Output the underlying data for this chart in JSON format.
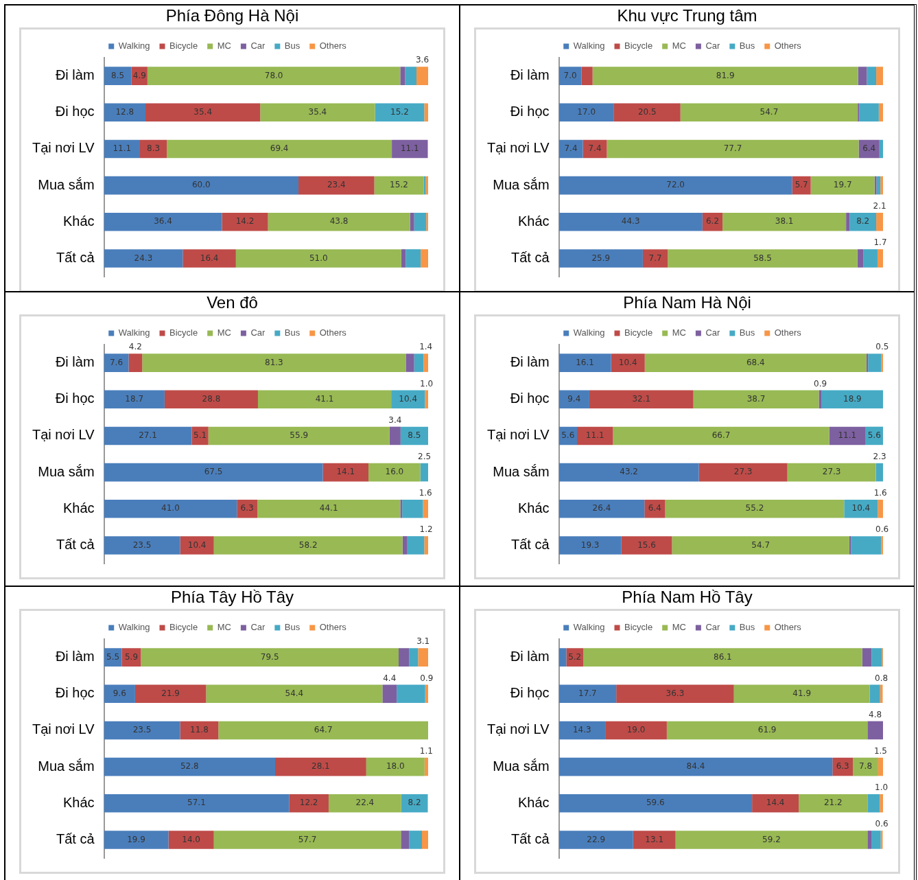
{
  "chart_data": [
    {
      "type": "bar",
      "orientation": "horizontal",
      "stacked": true,
      "title": "Phía Đông Hà Nội",
      "categories": [
        "Đi làm",
        "Đi học",
        "Tại nơi LV",
        "Mua sắm",
        "Khác",
        "Tất cả"
      ],
      "xlim": [
        0,
        100
      ],
      "tick_labels": "y",
      "legend": "top",
      "series": [
        {
          "name": "Walking",
          "color": "#4a7ebb",
          "values": [
            8.5,
            12.8,
            11.1,
            60.0,
            36.4,
            24.3
          ],
          "value_labels": [
            "8.5",
            "12.8",
            "11.1",
            "60.0",
            "36.4",
            "24.3"
          ]
        },
        {
          "name": "Bicycle",
          "color": "#be4b48",
          "values": [
            4.9,
            35.4,
            8.3,
            23.4,
            14.2,
            16.4
          ],
          "value_labels": [
            "4.9",
            "35.4",
            "8.3",
            "23.4",
            "14.2",
            "16.4"
          ]
        },
        {
          "name": "MC",
          "color": "#98b954",
          "values": [
            78.0,
            35.4,
            69.4,
            15.2,
            43.8,
            51.0
          ],
          "value_labels": [
            "78.0",
            "35.4",
            "69.4",
            "15.2",
            "43.8",
            "51.0"
          ]
        },
        {
          "name": "Car",
          "color": "#7d60a0",
          "values": [
            1.5,
            0,
            11.1,
            0,
            1.3,
            1.4
          ],
          "value_labels": [
            null,
            null,
            "11.1",
            null,
            null,
            null
          ]
        },
        {
          "name": "Bus",
          "color": "#46aac5",
          "values": [
            3.5,
            15.2,
            0,
            0.7,
            3.7,
            4.6
          ],
          "value_labels": [
            null,
            "15.2",
            null,
            null,
            null,
            null
          ]
        },
        {
          "name": "Others",
          "color": "#f79646",
          "values": [
            3.6,
            1.2,
            0,
            0.7,
            0.6,
            2.3
          ],
          "value_labels": [
            "3.6",
            null,
            null,
            null,
            null,
            null
          ]
        }
      ]
    },
    {
      "type": "bar",
      "orientation": "horizontal",
      "stacked": true,
      "title": "Khu vực Trung tâm",
      "categories": [
        "Đi làm",
        "Đi học",
        "Tại nơi LV",
        "Mua sắm",
        "Khác",
        "Tất cả"
      ],
      "xlim": [
        0,
        100
      ],
      "tick_labels": "y",
      "legend": "top",
      "series": [
        {
          "name": "Walking",
          "color": "#4a7ebb",
          "values": [
            7.0,
            17.0,
            7.4,
            72.0,
            44.3,
            25.9
          ],
          "value_labels": [
            "7.0",
            "17.0",
            "7.4",
            "72.0",
            "44.3",
            "25.9"
          ]
        },
        {
          "name": "Bicycle",
          "color": "#be4b48",
          "values": [
            3.4,
            20.5,
            7.4,
            5.7,
            6.2,
            7.7
          ],
          "value_labels": [
            null,
            "20.5",
            "7.4",
            "5.7",
            "6.2",
            "7.7"
          ]
        },
        {
          "name": "MC",
          "color": "#98b954",
          "values": [
            81.9,
            54.7,
            77.7,
            19.7,
            38.1,
            58.5
          ],
          "value_labels": [
            "81.9",
            "54.7",
            "77.7",
            "19.7",
            "38.1",
            "58.5"
          ]
        },
        {
          "name": "Car",
          "color": "#7d60a0",
          "values": [
            2.7,
            0.5,
            6.4,
            0.6,
            1.1,
            1.8
          ],
          "value_labels": [
            null,
            null,
            "6.4",
            null,
            null,
            null
          ]
        },
        {
          "name": "Bus",
          "color": "#46aac5",
          "values": [
            2.9,
            6.0,
            1.1,
            1.2,
            8.2,
            4.4
          ],
          "value_labels": [
            null,
            null,
            null,
            null,
            "8.2",
            null
          ]
        },
        {
          "name": "Others",
          "color": "#f79646",
          "values": [
            2.1,
            1.3,
            0,
            0.8,
            2.1,
            1.7
          ],
          "value_labels": [
            null,
            null,
            null,
            null,
            "2.1",
            "1.7"
          ]
        }
      ]
    },
    {
      "type": "bar",
      "orientation": "horizontal",
      "stacked": true,
      "title": "Ven đô",
      "categories": [
        "Đi làm",
        "Đi học",
        "Tại nơi LV",
        "Mua sắm",
        "Khác",
        "Tất cả"
      ],
      "xlim": [
        0,
        100
      ],
      "tick_labels": "y",
      "legend": "top",
      "series": [
        {
          "name": "Walking",
          "color": "#4a7ebb",
          "values": [
            7.6,
            18.7,
            27.1,
            67.5,
            41.0,
            23.5
          ],
          "value_labels": [
            "7.6",
            "18.7",
            "27.1",
            "67.5",
            "41.0",
            "23.5"
          ]
        },
        {
          "name": "Bicycle",
          "color": "#be4b48",
          "values": [
            4.2,
            28.8,
            5.1,
            14.1,
            6.3,
            10.4
          ],
          "value_labels": [
            "4.2",
            "28.8",
            "5.1",
            "14.1",
            "6.3",
            "10.4"
          ]
        },
        {
          "name": "MC",
          "color": "#98b954",
          "values": [
            81.3,
            41.1,
            55.9,
            16.0,
            44.1,
            58.2
          ],
          "value_labels": [
            "81.3",
            "41.1",
            "55.9",
            "16.0",
            "44.1",
            "58.2"
          ]
        },
        {
          "name": "Car",
          "color": "#7d60a0",
          "values": [
            2.6,
            0,
            3.4,
            0,
            0.6,
            1.5
          ],
          "value_labels": [
            null,
            null,
            "3.4",
            null,
            null,
            null
          ]
        },
        {
          "name": "Bus",
          "color": "#46aac5",
          "values": [
            2.9,
            10.4,
            8.5,
            2.5,
            6.4,
            5.2
          ],
          "value_labels": [
            null,
            "10.4",
            "8.5",
            "2.5",
            null,
            null
          ]
        },
        {
          "name": "Others",
          "color": "#f79646",
          "values": [
            1.4,
            1.0,
            0,
            0,
            1.6,
            1.2
          ],
          "value_labels": [
            "1.4",
            "1.0",
            null,
            null,
            "1.6",
            "1.2"
          ]
        }
      ]
    },
    {
      "type": "bar",
      "orientation": "horizontal",
      "stacked": true,
      "title": "Phía Nam Hà Nội",
      "categories": [
        "Đi làm",
        "Đi học",
        "Tại nơi LV",
        "Mua sắm",
        "Khác",
        "Tất cả"
      ],
      "xlim": [
        0,
        100
      ],
      "tick_labels": "y",
      "legend": "top",
      "series": [
        {
          "name": "Walking",
          "color": "#4a7ebb",
          "values": [
            16.1,
            9.4,
            5.6,
            43.2,
            26.4,
            19.3
          ],
          "value_labels": [
            "16.1",
            "9.4",
            "5.6",
            "43.2",
            "26.4",
            "19.3"
          ]
        },
        {
          "name": "Bicycle",
          "color": "#be4b48",
          "values": [
            10.4,
            32.1,
            11.1,
            27.3,
            6.4,
            15.6
          ],
          "value_labels": [
            "10.4",
            "32.1",
            "11.1",
            "27.3",
            "6.4",
            "15.6"
          ]
        },
        {
          "name": "MC",
          "color": "#98b954",
          "values": [
            68.4,
            38.7,
            66.7,
            27.3,
            55.2,
            54.7
          ],
          "value_labels": [
            "68.4",
            "38.7",
            "66.7",
            "27.3",
            "55.2",
            "54.7"
          ]
        },
        {
          "name": "Car",
          "color": "#7d60a0",
          "values": [
            0.5,
            0.9,
            11.1,
            0,
            0,
            0.5
          ],
          "value_labels": [
            null,
            "0.9",
            "11.1",
            null,
            null,
            null
          ]
        },
        {
          "name": "Bus",
          "color": "#46aac5",
          "values": [
            4.1,
            18.9,
            5.6,
            2.3,
            10.4,
            9.3
          ],
          "value_labels": [
            null,
            "18.9",
            "5.6",
            "2.3",
            "10.4",
            null
          ]
        },
        {
          "name": "Others",
          "color": "#f79646",
          "values": [
            0.5,
            0,
            0,
            0,
            1.6,
            0.6
          ],
          "value_labels": [
            "0.5",
            null,
            null,
            null,
            "1.6",
            "0.6"
          ]
        }
      ]
    },
    {
      "type": "bar",
      "orientation": "horizontal",
      "stacked": true,
      "title": "Phía Tây Hồ Tây",
      "categories": [
        "Đi làm",
        "Đi học",
        "Tại nơi LV",
        "Mua sắm",
        "Khác",
        "Tất cả"
      ],
      "xlim": [
        0,
        100
      ],
      "tick_labels": "y",
      "legend": "top",
      "series": [
        {
          "name": "Walking",
          "color": "#4a7ebb",
          "values": [
            5.5,
            9.6,
            23.5,
            52.8,
            57.1,
            19.9
          ],
          "value_labels": [
            "5.5",
            "9.6",
            "23.5",
            "52.8",
            "57.1",
            "19.9"
          ]
        },
        {
          "name": "Bicycle",
          "color": "#be4b48",
          "values": [
            5.9,
            21.9,
            11.8,
            28.1,
            12.2,
            14.0
          ],
          "value_labels": [
            "5.9",
            "21.9",
            "11.8",
            "28.1",
            "12.2",
            "14.0"
          ]
        },
        {
          "name": "MC",
          "color": "#98b954",
          "values": [
            79.5,
            54.4,
            64.7,
            18.0,
            22.4,
            57.7
          ],
          "value_labels": [
            "79.5",
            "54.4",
            "64.7",
            "18.0",
            "22.4",
            "57.7"
          ]
        },
        {
          "name": "Car",
          "color": "#7d60a0",
          "values": [
            3.2,
            4.4,
            0,
            0,
            0,
            2.5
          ],
          "value_labels": [
            null,
            "4.4",
            null,
            null,
            null,
            null
          ]
        },
        {
          "name": "Bus",
          "color": "#46aac5",
          "values": [
            2.8,
            8.8,
            0,
            0,
            8.2,
            4.0
          ],
          "value_labels": [
            null,
            null,
            null,
            null,
            "8.2",
            null
          ]
        },
        {
          "name": "Others",
          "color": "#f79646",
          "values": [
            3.1,
            0.9,
            0,
            1.1,
            0,
            1.9
          ],
          "value_labels": [
            "3.1",
            "0.9",
            null,
            "1.1",
            null,
            null
          ]
        }
      ]
    },
    {
      "type": "bar",
      "orientation": "horizontal",
      "stacked": true,
      "title": "Phía Nam Hồ Tây",
      "categories": [
        "Đi làm",
        "Đi học",
        "Tại nơi LV",
        "Mua sắm",
        "Khác",
        "Tất cả"
      ],
      "xlim": [
        0,
        100
      ],
      "tick_labels": "y",
      "legend": "top",
      "series": [
        {
          "name": "Walking",
          "color": "#4a7ebb",
          "values": [
            2.3,
            17.7,
            14.3,
            84.4,
            59.6,
            22.9
          ],
          "value_labels": [
            null,
            "17.7",
            "14.3",
            "84.4",
            "59.6",
            "22.9"
          ]
        },
        {
          "name": "Bicycle",
          "color": "#be4b48",
          "values": [
            5.2,
            36.3,
            19.0,
            6.3,
            14.4,
            13.1
          ],
          "value_labels": [
            "5.2",
            "36.3",
            "19.0",
            "6.3",
            "14.4",
            "13.1"
          ]
        },
        {
          "name": "MC",
          "color": "#98b954",
          "values": [
            86.1,
            41.9,
            61.9,
            7.8,
            21.2,
            59.2
          ],
          "value_labels": [
            "86.1",
            "41.9",
            "61.9",
            "7.8",
            "21.2",
            "59.2"
          ]
        },
        {
          "name": "Car",
          "color": "#7d60a0",
          "values": [
            2.9,
            0,
            4.8,
            0,
            0,
            1.2
          ],
          "value_labels": [
            null,
            null,
            "4.8",
            null,
            null,
            null
          ]
        },
        {
          "name": "Bus",
          "color": "#46aac5",
          "values": [
            3.2,
            3.2,
            0,
            0,
            3.8,
            2.9
          ],
          "value_labels": [
            null,
            null,
            null,
            null,
            null,
            null
          ]
        },
        {
          "name": "Others",
          "color": "#f79646",
          "values": [
            0.3,
            0.8,
            0,
            1.5,
            1.0,
            0.6
          ],
          "value_labels": [
            null,
            "0.8",
            null,
            "1.5",
            "1.0",
            "0.6"
          ]
        }
      ]
    }
  ]
}
